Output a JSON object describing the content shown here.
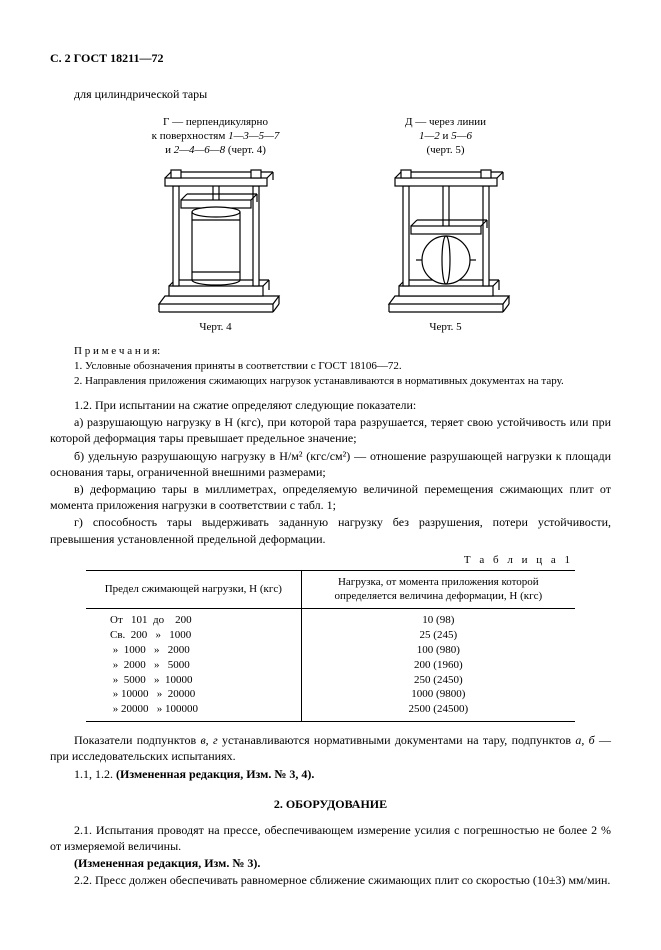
{
  "header": "С. 2 ГОСТ 18211—72",
  "intro": "для цилиндрической тары",
  "figG": {
    "titleLines": [
      "Г — перпендикулярно",
      "к поверхностям <span class='em'>1—3—5—7</span>",
      "и <span class='em'>2—4—6—8</span> (черт. 4)"
    ],
    "caption": "Черт. 4"
  },
  "figD": {
    "titleLines": [
      "Д — через линии",
      "<span class='em'>1—2</span> и <span class='em'>5—6</span>",
      "(черт. 5)"
    ],
    "caption": "Черт. 5"
  },
  "notes": {
    "head": "П р и м е ч а н и я:",
    "n1": "1. Условные обозначения приняты в соответствии с ГОСТ 18106—72.",
    "n2": "2. Направления приложения сжимающих нагрузок устанавливаются в нормативных документах на тару."
  },
  "p12": "1.2. При испытании на сжатие определяют следующие показатели:",
  "pa": "а) разрушающую нагрузку в Н (кгс), при которой тара разрушается, теряет свою устойчивость или при которой деформация тары превышает предельное значение;",
  "pb": "б) удельную разрушающую нагрузку в Н/м² (кгс/см²) — отношение разрушающей нагрузки к площади основания тары, ограниченной внешними размерами;",
  "pc": "в) деформацию тары в миллиметрах, определяемую величиной перемещения сжимающих плит от момента приложения нагрузки в соответствии с табл. 1;",
  "pd": "г) способность тары выдерживать заданную нагрузку без разрушения, потери устойчивости, превышения установленной предельной деформации.",
  "tableLabel": "Т а б л и ц а 1",
  "th1": "Предел сжимающей нагрузки, Н (кгс)",
  "th2": "Нагрузка, от момента приложения которой определяется величина деформации, Н (кгс)",
  "rows": [
    {
      "r": "От   101  до    200",
      "v": "10 (98)"
    },
    {
      "r": "Св.  200   »   1000",
      "v": "25 (245)"
    },
    {
      "r": " »  1000   »   2000",
      "v": "100 (980)"
    },
    {
      "r": " »  2000   »   5000",
      "v": "200 (1960)"
    },
    {
      "r": " »  5000   »  10000",
      "v": "250 (2450)"
    },
    {
      "r": " » 10000   »  20000",
      "v": "1000 (9800)"
    },
    {
      "r": " » 20000   » 100000",
      "v": "2500 (24500)"
    }
  ],
  "afterTable1": "Показатели подпунктов <i>в, г</i> устанавливаются нормативными документами на тару, подпунктов <i>а, б</i> — при исследовательских испытаниях.",
  "afterTable2": "1.1, 1.2. <b>(Измененная редакция, Изм. № 3, 4).</b>",
  "section2": "2. ОБОРУДОВАНИЕ",
  "p21": "2.1. Испытания проводят на прессе, обеспечивающем измерение усилия с погрешностью не более 2 % от измеряемой величины.",
  "p21b": "<b>(Измененная редакция, Изм. № 3).</b>",
  "p22": "2.2. Пресс должен обеспечивать равномерное сближение сжимающих плит со скоростью (10±3) мм/мин."
}
